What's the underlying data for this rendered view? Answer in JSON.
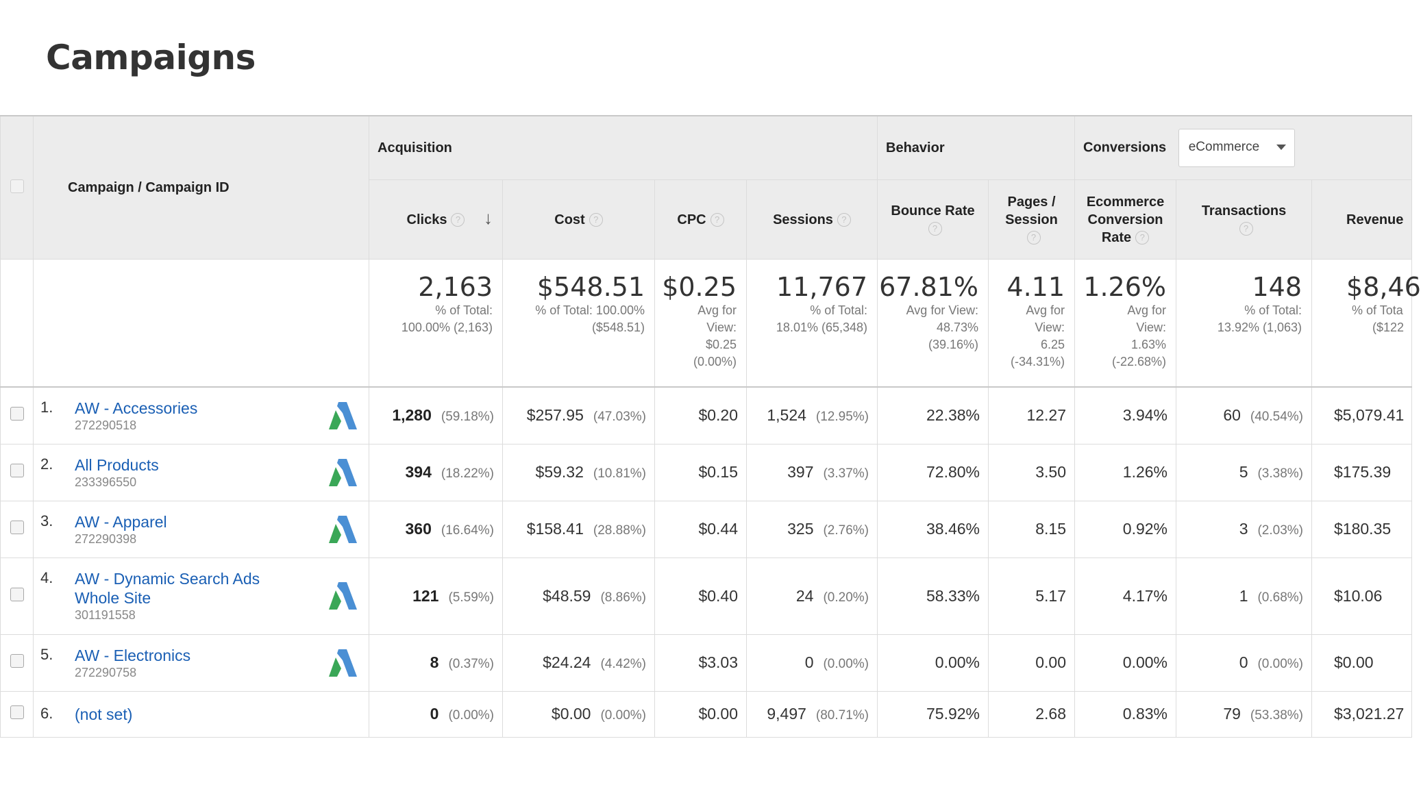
{
  "page": {
    "title": "Campaigns"
  },
  "header": {
    "dimension_label": "Campaign / Campaign ID",
    "groups": {
      "acquisition": "Acquisition",
      "behavior": "Behavior",
      "conversions": "Conversions"
    },
    "conversion_select": "eCommerce",
    "columns": {
      "clicks": "Clicks",
      "cost": "Cost",
      "cpc": "CPC",
      "sessions": "Sessions",
      "bounce_rate": "Bounce Rate",
      "pages_session_1": "Pages /",
      "pages_session_2": "Session",
      "ecom_rate_1": "Ecommerce",
      "ecom_rate_2": "Conversion",
      "ecom_rate_3": "Rate",
      "transactions": "Transactions",
      "revenue": "Revenue"
    },
    "help_glyph": "?",
    "sort_glyph": "↓"
  },
  "totals": {
    "clicks": {
      "value": "2,163",
      "sub1": "% of Total:",
      "sub2": "100.00% (2,163)"
    },
    "cost": {
      "value": "$548.51",
      "sub1": "% of Total: 100.00%",
      "sub2": "($548.51)"
    },
    "cpc": {
      "value": "$0.25",
      "sub1": "Avg for",
      "sub2": "View:",
      "sub3": "$0.25",
      "sub4": "(0.00%)"
    },
    "sessions": {
      "value": "11,767",
      "sub1": "% of Total:",
      "sub2": "18.01% (65,348)"
    },
    "bounce_rate": {
      "value": "67.81%",
      "sub1": "Avg for View:",
      "sub2": "48.73%",
      "sub3": "(39.16%)"
    },
    "pages_session": {
      "value": "4.11",
      "sub1": "Avg for",
      "sub2": "View:",
      "sub3": "6.25",
      "sub4": "(-34.31%)"
    },
    "ecom_rate": {
      "value": "1.26%",
      "sub1": "Avg for",
      "sub2": "View:",
      "sub3": "1.63%",
      "sub4": "(-22.68%)"
    },
    "transactions": {
      "value": "148",
      "sub1": "% of Total:",
      "sub2": "13.92% (1,063)"
    },
    "revenue": {
      "value": "$8,46",
      "sub1": "% of Tota",
      "sub2": "($122"
    }
  },
  "rows": [
    {
      "index": "1.",
      "name": "AW - Accessories",
      "name2": "",
      "id": "272290518",
      "clicks": "1,280",
      "clicks_pct": "(59.18%)",
      "cost": "$257.95",
      "cost_pct": "(47.03%)",
      "cpc": "$0.20",
      "sessions": "1,524",
      "sessions_pct": "(12.95%)",
      "bounce": "22.38%",
      "pages": "12.27",
      "ecom": "3.94%",
      "trans": "60",
      "trans_pct": "(40.54%)",
      "revenue": "$5,079.41",
      "ads_icon": true
    },
    {
      "index": "2.",
      "name": "All Products",
      "name2": "",
      "id": "233396550",
      "clicks": "394",
      "clicks_pct": "(18.22%)",
      "cost": "$59.32",
      "cost_pct": "(10.81%)",
      "cpc": "$0.15",
      "sessions": "397",
      "sessions_pct": "(3.37%)",
      "bounce": "72.80%",
      "pages": "3.50",
      "ecom": "1.26%",
      "trans": "5",
      "trans_pct": "(3.38%)",
      "revenue": "$175.39",
      "ads_icon": true
    },
    {
      "index": "3.",
      "name": "AW - Apparel",
      "name2": "",
      "id": "272290398",
      "clicks": "360",
      "clicks_pct": "(16.64%)",
      "cost": "$158.41",
      "cost_pct": "(28.88%)",
      "cpc": "$0.44",
      "sessions": "325",
      "sessions_pct": "(2.76%)",
      "bounce": "38.46%",
      "pages": "8.15",
      "ecom": "0.92%",
      "trans": "3",
      "trans_pct": "(2.03%)",
      "revenue": "$180.35",
      "ads_icon": true
    },
    {
      "index": "4.",
      "name": "AW - Dynamic Search Ads",
      "name2": "Whole Site",
      "id": "301191558",
      "clicks": "121",
      "clicks_pct": "(5.59%)",
      "cost": "$48.59",
      "cost_pct": "(8.86%)",
      "cpc": "$0.40",
      "sessions": "24",
      "sessions_pct": "(0.20%)",
      "bounce": "58.33%",
      "pages": "5.17",
      "ecom": "4.17%",
      "trans": "1",
      "trans_pct": "(0.68%)",
      "revenue": "$10.06",
      "ads_icon": true
    },
    {
      "index": "5.",
      "name": "AW - Electronics",
      "name2": "",
      "id": "272290758",
      "clicks": "8",
      "clicks_pct": "(0.37%)",
      "cost": "$24.24",
      "cost_pct": "(4.42%)",
      "cpc": "$3.03",
      "sessions": "0",
      "sessions_pct": "(0.00%)",
      "bounce": "0.00%",
      "pages": "0.00",
      "ecom": "0.00%",
      "trans": "0",
      "trans_pct": "(0.00%)",
      "revenue": "$0.00",
      "ads_icon": true
    },
    {
      "index": "6.",
      "name": "(not set)",
      "name2": "",
      "id": "",
      "clicks": "0",
      "clicks_pct": "(0.00%)",
      "cost": "$0.00",
      "cost_pct": "(0.00%)",
      "cpc": "$0.00",
      "sessions": "9,497",
      "sessions_pct": "(80.71%)",
      "bounce": "75.92%",
      "pages": "2.68",
      "ecom": "0.83%",
      "trans": "79",
      "trans_pct": "(53.38%)",
      "revenue": "$3,021.27",
      "ads_icon": false
    }
  ],
  "colors": {
    "link": "#1a5fb4",
    "header_bg": "#ececec",
    "ads_blue": "#4a8fd4",
    "ads_green": "#3aa757"
  }
}
